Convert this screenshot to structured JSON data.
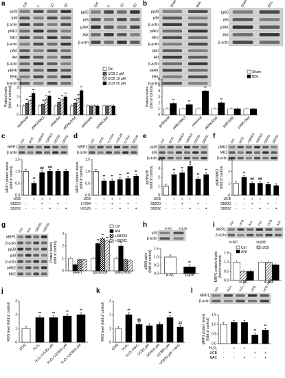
{
  "panels": {
    "a": {
      "label": "a",
      "lanes": [
        "Ctrl",
        "2",
        "10",
        "50"
      ],
      "blot_rows_left": [
        "pp38",
        "p38",
        "β-actin",
        "pMK2",
        "MK2",
        "β-actin",
        "pAkt",
        "Akt",
        "β-actin",
        "pERK",
        "ERK",
        "β-actin"
      ],
      "blot_rows_right": [
        "pp65",
        "p65",
        "pJNK",
        "JNK",
        "β-actin"
      ],
      "chart": {
        "ylabel": "Protein levels\n(fold of control)",
        "legend": [
          "Ctrl",
          "UCB 2 μM",
          "UCB 10 μM",
          "UCB 50 μM"
        ],
        "categories": [
          "pp38/p38",
          "pMK2/MK2",
          "pAkt/Akt",
          "pERK/ERK",
          "pp65/p65",
          "pJNK/JNK"
        ],
        "yticks": [
          "0",
          "1",
          "2",
          "3",
          "4"
        ]
      }
    },
    "b": {
      "label": "b",
      "lanes": [
        "Sham",
        "BDL"
      ],
      "blot_rows_left": [
        "pp38",
        "p38",
        "β-actin",
        "pMK2",
        "MK2",
        "β-actin",
        "pAkt",
        "Akt",
        "β-actin",
        "pERK",
        "ERK",
        "β-actin"
      ],
      "blot_rows_right": [
        "pp65",
        "p65",
        "pJNK",
        "JNK",
        "β-actin"
      ],
      "chart": {
        "ylabel": "Protein levels\n(fold of control)",
        "legend": [
          "Sham",
          "BDL"
        ],
        "categories": [
          "pp38/p38",
          "pMK2/MK2",
          "pAkt/Akt",
          "pERK/ERK",
          "pp65/p65",
          "pJNK/JNK"
        ],
        "yticks": [
          "0",
          "1",
          "2",
          "3",
          "4",
          "5",
          "6"
        ]
      }
    },
    "c": {
      "label": "c",
      "lanes": [
        "Ctrl",
        "UCB",
        "+SB203",
        "+SB202",
        "SB203",
        "SB202"
      ],
      "rows": [
        "MRP1",
        "β-actin"
      ],
      "ylabel": "MRP1 protein levels\n(fold of control)",
      "yticks": [
        "0.0",
        "0.5",
        "1.0",
        "1.5"
      ],
      "cond": [
        {
          "name": "UCB",
          "vals": [
            "-",
            "+",
            "+",
            "+",
            "-",
            "-"
          ]
        },
        {
          "name": "SB203",
          "vals": [
            "-",
            "-",
            "+",
            "-",
            "+",
            "-"
          ]
        },
        {
          "name": "SB202",
          "vals": [
            "-",
            "-",
            "-",
            "+",
            "-",
            "+"
          ]
        }
      ],
      "marks": [
        "",
        "**",
        "##",
        "##",
        "",
        ""
      ]
    },
    "d": {
      "label": "d",
      "lanes": [
        "Ctrl",
        "UCB",
        "+LY294",
        "+U0126",
        "LY294",
        "U0126"
      ],
      "rows": [
        "MRP1",
        "β-actin"
      ],
      "ylabel": "MRP1 protein levels\n(fold of control)",
      "yticks": [
        "0.0",
        "0.5",
        "1.0",
        "1.5"
      ],
      "cond": [
        {
          "name": "UCB",
          "vals": [
            "-",
            "+",
            "+",
            "+",
            "-",
            "-"
          ]
        },
        {
          "name": "LY294",
          "vals": [
            "-",
            "-",
            "+",
            "-",
            "+",
            "-"
          ]
        },
        {
          "name": "U0126",
          "vals": [
            "-",
            "-",
            "-",
            "+",
            "-",
            "+"
          ]
        }
      ],
      "marks": [
        "",
        "**",
        "**",
        "**",
        "**",
        "**"
      ]
    },
    "e": {
      "label": "e",
      "lanes": [
        "Ctrl",
        "UCB",
        "+SB203",
        "+SB202",
        "SB203",
        "SB202"
      ],
      "rows": [
        "pp38",
        "p38",
        "β-actin"
      ],
      "ylabel": "pp38/p38\n(fold of control)",
      "yticks": [
        "0",
        "1",
        "2",
        "3",
        "4"
      ],
      "cond": [
        {
          "name": "UCB",
          "vals": [
            "-",
            "+",
            "+",
            "+",
            "-",
            "-"
          ]
        },
        {
          "name": "SB203",
          "vals": [
            "-",
            "-",
            "+",
            "-",
            "+",
            "-"
          ]
        },
        {
          "name": "SB202",
          "vals": [
            "-",
            "-",
            "-",
            "+",
            "-",
            "+"
          ]
        }
      ],
      "marks": [
        "",
        "**",
        "**",
        "#",
        "**",
        "**"
      ]
    },
    "f": {
      "label": "f",
      "lanes": [
        "Ctrl",
        "UCB",
        "+SB203",
        "+SB202",
        "SB203",
        "SB202"
      ],
      "rows": [
        "pMK2",
        "MK2",
        "β-actin"
      ],
      "ylabel": "pMK2/MK2\n(fold of control)",
      "yticks": [
        "0",
        "1",
        "2",
        "3"
      ],
      "cond": [
        {
          "name": "UCB",
          "vals": [
            "-",
            "+",
            "+",
            "+",
            "-",
            "-"
          ]
        },
        {
          "name": "SB203",
          "vals": [
            "-",
            "-",
            "+",
            "-",
            "+",
            "-"
          ]
        },
        {
          "name": "SB202",
          "vals": [
            "-",
            "-",
            "-",
            "+",
            "-",
            "+"
          ]
        }
      ],
      "marks": [
        "",
        "**",
        "##",
        "##",
        "",
        ""
      ]
    },
    "g": {
      "label": "g",
      "lanes": [
        "Ctrl",
        "ANI",
        "+SB203",
        "+SB202"
      ],
      "rows": [
        "MRP1",
        "β-actin",
        "pp38",
        "p38",
        "β-actin",
        "pMK2",
        "MK2"
      ],
      "ylabel": "Protein levels\n(fold of control)",
      "legend": [
        "Ctrl",
        "ANI",
        "+SB203",
        "+SB202"
      ],
      "categories": [
        "MRP1",
        "pp38/p38",
        "pMK2/MK2"
      ],
      "yticks": [
        "0",
        "1",
        "2",
        "3"
      ]
    },
    "h": {
      "label": "h",
      "lanes": [
        "si-NC",
        "si-p38"
      ],
      "rows": [
        "p38",
        "β-actin"
      ],
      "ylabel": "p38/β-actin\n(fold of control)",
      "categories": [
        "si-NC",
        "si-p38"
      ],
      "yticks": [
        "0.0",
        "0.5",
        "1.0",
        "1.5"
      ],
      "marks": [
        "",
        "**"
      ]
    },
    "i": {
      "label": "i",
      "lanes": [
        "Ctrl",
        "UCB",
        "ANI",
        "Ctrl",
        "UCB",
        "ANI"
      ],
      "groups": [
        "si-NC",
        "si-p38"
      ],
      "rows": [
        "MRP1",
        "β-actin"
      ],
      "ylabel": "MRP1 protein levels\n(fold of control)",
      "legend": [
        "Ctrl",
        "UCB",
        "ANI"
      ],
      "categories": [
        "si-NC",
        "si-p38"
      ],
      "yticks": [
        "0.0",
        "0.5",
        "1.0",
        "1.5"
      ]
    },
    "j": {
      "label": "j",
      "ylabel": "ROS level (fold of control)",
      "yticks": [
        "0",
        "1",
        "2",
        "3"
      ],
      "categories": [
        "CON",
        "H₂O₂",
        "H₂O₂+UCB2 μM",
        "H₂O₂+UCB10 μM",
        "H₂O₂+UCB50 μM"
      ],
      "marks": [
        "",
        "**",
        "**",
        "**",
        "**"
      ]
    },
    "k": {
      "label": "k",
      "ylabel": "ROS level (fold of control)",
      "yticks": [
        "0",
        "1",
        "2",
        "3"
      ],
      "categories": [
        "CON",
        "H₂O₂",
        "H₂O₂+NAC",
        "UCB2 μM",
        "UCB10 μM",
        "UCB50 μM",
        "UCB50 μM + NAC"
      ],
      "marks": [
        "",
        "**",
        "$$",
        "",
        "",
        "**",
        "##"
      ]
    },
    "l": {
      "label": "l",
      "lanes": [
        "Ctrl",
        "H₂O₂",
        "H₂O₂ +NAC",
        "UCB",
        "UCB +NAC"
      ],
      "rows": [
        "MRP1",
        "β-actin"
      ],
      "ylabel": "MRP1 protein levels\n(fold of control)",
      "yticks": [
        "0.0",
        "0.5",
        "1.0",
        "1.5"
      ],
      "cond": [
        {
          "name": "H₂O₂",
          "vals": [
            "-",
            "+",
            "+",
            "-",
            "-"
          ]
        },
        {
          "name": "UCB",
          "vals": [
            "-",
            "-",
            "-",
            "+",
            "+"
          ]
        },
        {
          "name": "NAC",
          "vals": [
            "-",
            "-",
            "+",
            "-",
            "+"
          ]
        }
      ],
      "marks": [
        "",
        "",
        "",
        "**",
        "**"
      ]
    }
  },
  "chart_data": [
    {
      "id": "a",
      "type": "bar",
      "categories": [
        "pp38/p38",
        "pMK2/MK2",
        "pAkt/Akt",
        "pERK/ERK",
        "pp65/p65",
        "pJNK/JNK"
      ],
      "series": [
        {
          "name": "Ctrl",
          "values": [
            1,
            1,
            1,
            1,
            1,
            1
          ]
        },
        {
          "name": "UCB 2 μM",
          "values": [
            1.3,
            1.2,
            1.4,
            1.3,
            1.0,
            1.0
          ]
        },
        {
          "name": "UCB 10 μM",
          "values": [
            1.6,
            1.7,
            1.7,
            1.8,
            1.0,
            1.0
          ]
        },
        {
          "name": "UCB 50 μM",
          "values": [
            2.4,
            2.1,
            2.0,
            2.7,
            1.0,
            1.0
          ]
        }
      ],
      "ylim": [
        0,
        4
      ]
    },
    {
      "id": "b",
      "type": "bar",
      "categories": [
        "pp38/p38",
        "pMK2/MK2",
        "pAkt/Akt",
        "pERK/ERK",
        "pp65/p65",
        "pJNK/JNK"
      ],
      "series": [
        {
          "name": "Sham",
          "values": [
            1,
            1,
            1,
            1,
            1,
            1
          ]
        },
        {
          "name": "BDL",
          "values": [
            1.9,
            1.7,
            4.0,
            2.0,
            1.0,
            1.0
          ]
        }
      ],
      "ylim": [
        0,
        6
      ]
    },
    {
      "id": "c",
      "type": "bar",
      "values": [
        1.0,
        0.5,
        0.95,
        1.0,
        1.0,
        1.0
      ],
      "ylim": [
        0,
        1.5
      ]
    },
    {
      "id": "d",
      "type": "bar",
      "values": [
        1.0,
        0.6,
        0.6,
        0.65,
        0.7,
        0.8
      ],
      "ylim": [
        0,
        1.5
      ]
    },
    {
      "id": "e",
      "type": "bar",
      "values": [
        1.0,
        2.3,
        2.5,
        3.2,
        1.8,
        2.3
      ],
      "ylim": [
        0,
        4
      ]
    },
    {
      "id": "f",
      "type": "bar",
      "values": [
        1.0,
        1.5,
        1.0,
        1.0,
        0.9,
        0.8
      ],
      "ylim": [
        0,
        3
      ]
    },
    {
      "id": "g",
      "type": "bar",
      "categories": [
        "MRP1",
        "pp38/p38",
        "pMK2/MK2"
      ],
      "series": [
        {
          "name": "Ctrl",
          "values": [
            1,
            1,
            1
          ]
        },
        {
          "name": "ANI",
          "values": [
            0.5,
            2.2,
            2.0
          ]
        },
        {
          "name": "+SB203",
          "values": [
            0.9,
            2.6,
            0.9
          ]
        },
        {
          "name": "+SB202",
          "values": [
            0.9,
            2.4,
            0.8
          ]
        }
      ],
      "ylim": [
        0,
        3
      ]
    },
    {
      "id": "h",
      "type": "bar",
      "categories": [
        "si-NC",
        "si-p38"
      ],
      "values": [
        1.0,
        0.4
      ],
      "ylim": [
        0,
        1.5
      ]
    },
    {
      "id": "i",
      "type": "bar",
      "categories": [
        "si-NC",
        "si-p38"
      ],
      "series": [
        {
          "name": "Ctrl",
          "values": [
            1.0,
            1.0
          ]
        },
        {
          "name": "UCB",
          "values": [
            0.5,
            1.0
          ]
        },
        {
          "name": "ANI",
          "values": [
            0.5,
            0.85
          ]
        }
      ],
      "ylim": [
        0,
        1.5
      ]
    },
    {
      "id": "j",
      "type": "bar",
      "categories": [
        "CON",
        "H₂O₂",
        "H₂O₂+UCB2 μM",
        "H₂O₂+UCB10 μM",
        "H₂O₂+UCB50 μM"
      ],
      "values": [
        1.0,
        1.8,
        1.8,
        1.9,
        2.0
      ],
      "ylim": [
        0,
        3
      ]
    },
    {
      "id": "k",
      "type": "bar",
      "categories": [
        "CON",
        "H₂O₂",
        "H₂O₂+NAC",
        "UCB2 μM",
        "UCB10 μM",
        "UCB50 μM",
        "UCB50 μM + NAC"
      ],
      "values": [
        1.0,
        2.0,
        1.3,
        1.2,
        1.3,
        1.8,
        1.1
      ],
      "ylim": [
        0,
        3
      ]
    },
    {
      "id": "l",
      "type": "bar",
      "values": [
        1.0,
        1.1,
        1.1,
        0.45,
        0.7
      ],
      "ylim": [
        0,
        1.5
      ]
    }
  ]
}
